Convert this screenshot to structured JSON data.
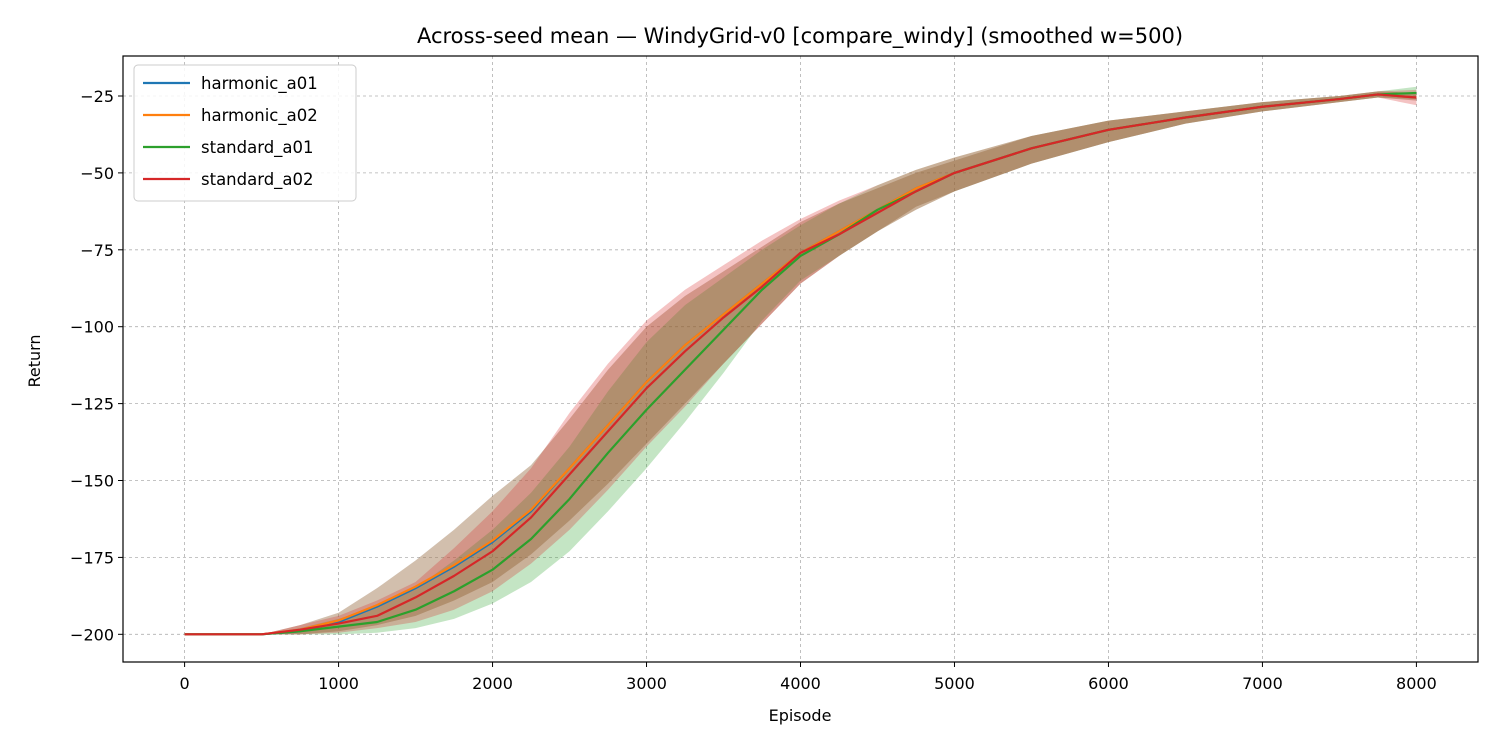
{
  "chart_data": {
    "type": "line",
    "title": "Across-seed mean — WindyGrid-v0 [compare_windy] (smoothed w=500)",
    "xlabel": "Episode",
    "ylabel": "Return",
    "xlim": [
      -400,
      8400
    ],
    "ylim": [
      -209,
      -12
    ],
    "xticks": [
      0,
      1000,
      2000,
      3000,
      4000,
      5000,
      6000,
      7000,
      8000
    ],
    "xtick_labels": [
      "0",
      "1000",
      "2000",
      "3000",
      "4000",
      "5000",
      "6000",
      "7000",
      "8000"
    ],
    "yticks": [
      -200,
      -175,
      -150,
      -125,
      -100,
      -75,
      -50,
      -25
    ],
    "ytick_labels": [
      "−200",
      "−175",
      "−150",
      "−125",
      "−100",
      "−75",
      "−50",
      "−25"
    ],
    "grid": true,
    "legend_position": "top-left",
    "x": [
      0,
      250,
      500,
      750,
      1000,
      1250,
      1500,
      1750,
      2000,
      2250,
      2500,
      2750,
      3000,
      3250,
      3500,
      3750,
      4000,
      4250,
      4500,
      4750,
      5000,
      5500,
      6000,
      6500,
      7000,
      7500,
      7750,
      8000
    ],
    "series": [
      {
        "name": "harmonic_a01",
        "color": "#1f77b4",
        "values": [
          -200,
          -200,
          -200,
          -199,
          -196,
          -191,
          -185,
          -178,
          -170,
          -160,
          -146,
          -132,
          -118,
          -106,
          -96,
          -86,
          -76,
          -69,
          -62,
          -55,
          -50,
          -42,
          -36,
          -32,
          -28.5,
          -26,
          -24.5,
          -25.5
        ],
        "band_low": [
          -200,
          -200,
          -200,
          -200,
          -199,
          -197,
          -194,
          -189,
          -183,
          -174,
          -163,
          -151,
          -138,
          -125,
          -112,
          -99,
          -86,
          -77,
          -69,
          -61,
          -56,
          -47,
          -40,
          -34,
          -30,
          -27,
          -25.5,
          -26.5
        ],
        "band_high": [
          -200,
          -200,
          -200,
          -197,
          -193,
          -185,
          -176,
          -166,
          -155,
          -145,
          -130,
          -114,
          -100,
          -90,
          -82,
          -74,
          -66,
          -60,
          -55,
          -50,
          -46,
          -38,
          -33,
          -30,
          -27,
          -25,
          -23.5,
          -24
        ]
      },
      {
        "name": "harmonic_a02",
        "color": "#ff7f0e",
        "values": [
          -200,
          -200,
          -200,
          -198.5,
          -195.5,
          -190.5,
          -184.5,
          -177.5,
          -169.5,
          -159.5,
          -146,
          -132,
          -118,
          -106,
          -96,
          -86,
          -76,
          -69,
          -62,
          -55,
          -50,
          -42,
          -36,
          -32,
          -28.5,
          -26,
          -24.5,
          -25.5
        ],
        "band_low": [
          -200,
          -200,
          -200,
          -200,
          -199,
          -197,
          -194,
          -189,
          -183,
          -174,
          -163,
          -151,
          -138,
          -125,
          -112,
          -99,
          -86,
          -77,
          -69,
          -61,
          -56,
          -47,
          -40,
          -34,
          -30,
          -27,
          -25.5,
          -26.5
        ],
        "band_high": [
          -200,
          -200,
          -200,
          -197,
          -193,
          -185,
          -176,
          -166,
          -155,
          -145,
          -130,
          -114,
          -100,
          -90,
          -82,
          -74,
          -66,
          -60,
          -55,
          -50,
          -46,
          -38,
          -33,
          -30,
          -27,
          -25,
          -23.5,
          -24
        ]
      },
      {
        "name": "standard_a01",
        "color": "#2ca02c",
        "values": [
          -200,
          -200,
          -200,
          -199,
          -197.5,
          -196,
          -192,
          -186,
          -179,
          -169,
          -156,
          -141,
          -127,
          -114,
          -101,
          -88,
          -77,
          -70,
          -62,
          -56,
          -50,
          -42,
          -36,
          -32,
          -28.5,
          -26,
          -24.5,
          -24
        ],
        "band_low": [
          -200,
          -200,
          -200,
          -200,
          -200,
          -199.5,
          -198,
          -195,
          -190,
          -183,
          -173,
          -160,
          -146,
          -131,
          -115,
          -98,
          -85,
          -77,
          -69,
          -62,
          -56,
          -47,
          -40,
          -34,
          -30,
          -27,
          -25.5,
          -26
        ],
        "band_high": [
          -200,
          -200,
          -200,
          -198,
          -195,
          -191,
          -185,
          -176,
          -166,
          -154,
          -139,
          -121,
          -105,
          -93,
          -84,
          -75,
          -67,
          -60,
          -54,
          -49,
          -45,
          -38,
          -33,
          -30,
          -27,
          -25,
          -23.5,
          -22
        ]
      },
      {
        "name": "standard_a02",
        "color": "#d62728",
        "values": [
          -200,
          -200,
          -200,
          -198.5,
          -196.5,
          -194,
          -188,
          -181,
          -173,
          -162,
          -148,
          -134,
          -120,
          -108,
          -97,
          -87,
          -76,
          -70,
          -63,
          -56,
          -50,
          -42,
          -36,
          -32,
          -28.5,
          -26,
          -24.5,
          -25.5
        ],
        "band_low": [
          -200,
          -200,
          -200,
          -200,
          -199.5,
          -198,
          -196,
          -192,
          -186,
          -177,
          -166,
          -153,
          -139,
          -126,
          -112,
          -99,
          -86,
          -77,
          -69,
          -62,
          -56,
          -47,
          -40,
          -34,
          -30,
          -27,
          -25.5,
          -28
        ],
        "band_high": [
          -200,
          -200,
          -200,
          -197,
          -194,
          -189,
          -183,
          -172,
          -160,
          -146,
          -128,
          -112,
          -98,
          -88,
          -80,
          -72,
          -65,
          -59,
          -54,
          -49,
          -45,
          -38,
          -33,
          -30,
          -27,
          -25,
          -23.5,
          -23
        ]
      }
    ]
  }
}
